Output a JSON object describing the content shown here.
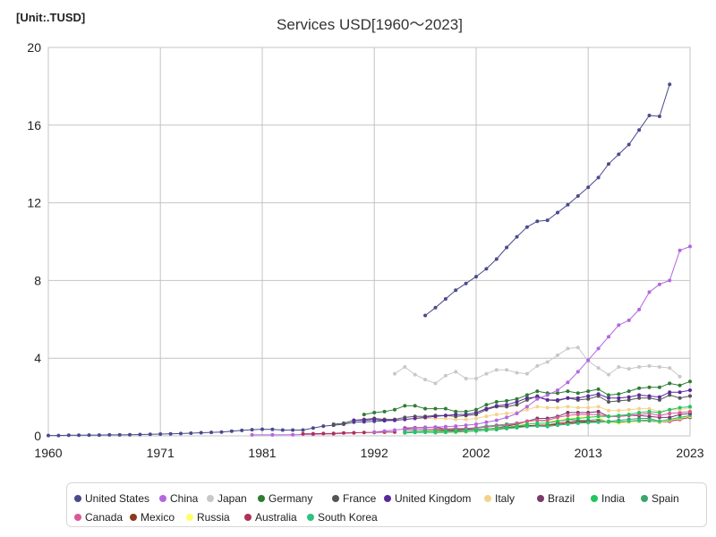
{
  "unit_label": "[Unit:.TUSD]",
  "chart_data": {
    "type": "line",
    "title": "Services USD[1960～2023]",
    "xlabel": "",
    "ylabel": "",
    "xlim": [
      1960,
      2023
    ],
    "ylim": [
      0,
      20
    ],
    "x_ticks": [
      1960,
      1971,
      1981,
      1992,
      2002,
      2013,
      2023
    ],
    "y_ticks": [
      0,
      4,
      8,
      12,
      16,
      20
    ],
    "grid": true,
    "legend_position": "bottom",
    "series": [
      {
        "name": "United States",
        "color": "#4a4a8c",
        "x": [
          1997,
          1998,
          1999,
          2000,
          2001,
          2002,
          2003,
          2004,
          2005,
          2006,
          2007,
          2008,
          2009,
          2010,
          2011,
          2012,
          2013,
          2014,
          2015,
          2016,
          2017,
          2018,
          2019,
          2020,
          2021
        ],
        "y": [
          6.2,
          6.6,
          7.05,
          7.5,
          7.85,
          8.2,
          8.6,
          9.1,
          9.7,
          10.25,
          10.75,
          11.05,
          11.1,
          11.5,
          11.9,
          12.35,
          12.8,
          13.3,
          14.0,
          14.5,
          15.0,
          15.75,
          16.5,
          16.45,
          18.1
        ]
      },
      {
        "name": "China",
        "color": "#b266e0",
        "x": [
          1992,
          1993,
          1994,
          1995,
          1996,
          1997,
          1998,
          1999,
          2000,
          2001,
          2002,
          2003,
          2004,
          2005,
          2006,
          2007,
          2008,
          2009,
          2010,
          2011,
          2012,
          2013,
          2014,
          2015,
          2016,
          2017,
          2018,
          2019,
          2020,
          2021,
          2022,
          2023
        ],
        "y": [
          0.2,
          0.25,
          0.3,
          0.35,
          0.4,
          0.42,
          0.45,
          0.48,
          0.5,
          0.55,
          0.6,
          0.7,
          0.8,
          0.95,
          1.15,
          1.5,
          1.9,
          2.1,
          2.35,
          2.75,
          3.3,
          3.9,
          4.5,
          5.1,
          5.7,
          5.95,
          6.5,
          7.4,
          7.8,
          8.0,
          9.55,
          9.75
        ]
      },
      {
        "name": "Japan",
        "color": "#c8c8c8",
        "x": [
          1994,
          1995,
          1996,
          1997,
          1998,
          1999,
          2000,
          2001,
          2002,
          2003,
          2004,
          2005,
          2006,
          2007,
          2008,
          2009,
          2010,
          2011,
          2012,
          2013,
          2014,
          2015,
          2016,
          2017,
          2018,
          2019,
          2020,
          2021,
          2022
        ],
        "y": [
          3.2,
          3.55,
          3.15,
          2.9,
          2.7,
          3.1,
          3.3,
          2.95,
          2.95,
          3.2,
          3.4,
          3.4,
          3.25,
          3.2,
          3.6,
          3.8,
          4.15,
          4.5,
          4.55,
          3.85,
          3.5,
          3.15,
          3.55,
          3.45,
          3.55,
          3.6,
          3.55,
          3.5,
          3.05
        ]
      },
      {
        "name": "Germany",
        "color": "#2e7d32",
        "x": [
          1991,
          1992,
          1993,
          1994,
          1995,
          1996,
          1997,
          1998,
          1999,
          2000,
          2001,
          2002,
          2003,
          2004,
          2005,
          2006,
          2007,
          2008,
          2009,
          2010,
          2011,
          2012,
          2013,
          2014,
          2015,
          2016,
          2017,
          2018,
          2019,
          2020,
          2021,
          2022,
          2023
        ],
        "y": [
          1.1,
          1.2,
          1.25,
          1.35,
          1.55,
          1.55,
          1.4,
          1.4,
          1.4,
          1.25,
          1.25,
          1.35,
          1.6,
          1.75,
          1.8,
          1.9,
          2.1,
          2.3,
          2.2,
          2.2,
          2.3,
          2.2,
          2.3,
          2.4,
          2.1,
          2.15,
          2.3,
          2.45,
          2.5,
          2.5,
          2.7,
          2.6,
          2.8
        ]
      },
      {
        "name": "France",
        "color": "#555555",
        "x": [
          1988,
          1989,
          1990,
          1991,
          1992,
          1993,
          1994,
          1995,
          1996,
          1997,
          1998,
          1999,
          2000,
          2001,
          2002,
          2003,
          2004,
          2005,
          2006,
          2007,
          2008,
          2009,
          2010,
          2011,
          2012,
          2013,
          2014,
          2015,
          2016,
          2017,
          2018,
          2019,
          2020,
          2021,
          2022,
          2023
        ],
        "y": [
          0.6,
          0.65,
          0.8,
          0.85,
          0.9,
          0.85,
          0.85,
          0.95,
          1.0,
          1.0,
          1.05,
          1.05,
          1.0,
          1.05,
          1.1,
          1.35,
          1.5,
          1.5,
          1.6,
          1.85,
          2.05,
          1.85,
          1.8,
          1.95,
          1.85,
          1.9,
          2.05,
          1.75,
          1.8,
          1.85,
          1.95,
          1.95,
          1.85,
          2.1,
          1.95,
          2.05
        ]
      },
      {
        "name": "United Kingdom",
        "color": "#5a2a9c",
        "x": [
          1990,
          1991,
          1992,
          1993,
          1994,
          1995,
          1996,
          1997,
          1998,
          1999,
          2000,
          2001,
          2002,
          2003,
          2004,
          2005,
          2006,
          2007,
          2008,
          2009,
          2010,
          2011,
          2012,
          2013,
          2014,
          2015,
          2016,
          2017,
          2018,
          2019,
          2020,
          2021,
          2022,
          2023
        ],
        "y": [
          0.8,
          0.8,
          0.85,
          0.8,
          0.8,
          0.85,
          0.9,
          0.95,
          1.0,
          1.05,
          1.1,
          1.1,
          1.2,
          1.4,
          1.55,
          1.6,
          1.75,
          1.95,
          2.0,
          1.85,
          1.85,
          1.95,
          1.95,
          2.05,
          2.15,
          1.95,
          1.95,
          2.0,
          2.1,
          2.05,
          2.0,
          2.25,
          2.25,
          2.35
        ]
      },
      {
        "name": "Italy",
        "color": "#f5d28a",
        "x": [
          1995,
          1996,
          1997,
          1998,
          1999,
          2000,
          2001,
          2002,
          2003,
          2004,
          2005,
          2006,
          2007,
          2008,
          2009,
          2010,
          2011,
          2012,
          2013,
          2014,
          2015,
          2016,
          2017,
          2018,
          2019,
          2020,
          2021,
          2022,
          2023
        ],
        "y": [
          0.85,
          0.9,
          0.9,
          0.9,
          0.9,
          0.85,
          0.85,
          0.9,
          1.0,
          1.1,
          1.15,
          1.2,
          1.35,
          1.5,
          1.45,
          1.45,
          1.5,
          1.45,
          1.45,
          1.5,
          1.3,
          1.3,
          1.35,
          1.4,
          1.4,
          1.25,
          1.35,
          1.35,
          1.45
        ]
      },
      {
        "name": "Brazil",
        "color": "#7a3a6a",
        "x": [
          1995,
          1996,
          1997,
          1998,
          1999,
          2000,
          2001,
          2002,
          2003,
          2004,
          2005,
          2006,
          2007,
          2008,
          2009,
          2010,
          2011,
          2012,
          2013,
          2014,
          2015,
          2016,
          2017,
          2018,
          2019,
          2020,
          2021,
          2022,
          2023
        ],
        "y": [
          0.4,
          0.42,
          0.44,
          0.45,
          0.35,
          0.38,
          0.35,
          0.33,
          0.35,
          0.4,
          0.5,
          0.6,
          0.75,
          0.9,
          0.9,
          1.0,
          1.2,
          1.2,
          1.2,
          1.25,
          1.0,
          1.0,
          1.05,
          1.05,
          1.0,
          0.95,
          0.95,
          1.1,
          1.15
        ]
      },
      {
        "name": "India",
        "color": "#22c55e",
        "x": [
          1995,
          1996,
          1997,
          1998,
          1999,
          2000,
          2001,
          2002,
          2003,
          2004,
          2005,
          2006,
          2007,
          2008,
          2009,
          2010,
          2011,
          2012,
          2013,
          2014,
          2015,
          2016,
          2017,
          2018,
          2019,
          2020,
          2021,
          2022,
          2023
        ],
        "y": [
          0.2,
          0.22,
          0.24,
          0.25,
          0.26,
          0.28,
          0.3,
          0.32,
          0.35,
          0.4,
          0.45,
          0.5,
          0.6,
          0.65,
          0.65,
          0.75,
          0.85,
          0.9,
          0.95,
          1.0,
          1.0,
          1.05,
          1.1,
          1.2,
          1.25,
          1.2,
          1.35,
          1.45,
          1.5
        ]
      },
      {
        "name": "Spain",
        "color": "#3aa66b",
        "x": [
          1995,
          1996,
          1997,
          1998,
          1999,
          2000,
          2001,
          2002,
          2003,
          2004,
          2005,
          2006,
          2007,
          2008,
          2009,
          2010,
          2011,
          2012,
          2013,
          2014,
          2015,
          2016,
          2017,
          2018,
          2019,
          2020,
          2021,
          2022,
          2023
        ],
        "y": [
          0.3,
          0.32,
          0.33,
          0.35,
          0.36,
          0.36,
          0.38,
          0.42,
          0.5,
          0.55,
          0.6,
          0.65,
          0.75,
          0.8,
          0.75,
          0.75,
          0.85,
          0.8,
          0.8,
          0.85,
          0.75,
          0.8,
          0.85,
          0.9,
          0.9,
          0.75,
          0.85,
          0.95,
          1.0
        ]
      },
      {
        "name": "Canada",
        "color": "#d9589a",
        "x": [
          1995,
          1996,
          1997,
          1998,
          1999,
          2000,
          2001,
          2002,
          2003,
          2004,
          2005,
          2006,
          2007,
          2008,
          2009,
          2010,
          2011,
          2012,
          2013,
          2014,
          2015,
          2016,
          2017,
          2018,
          2019,
          2020,
          2021,
          2022,
          2023
        ],
        "y": [
          0.3,
          0.32,
          0.34,
          0.35,
          0.36,
          0.38,
          0.38,
          0.4,
          0.45,
          0.5,
          0.55,
          0.65,
          0.75,
          0.8,
          0.8,
          0.95,
          1.05,
          1.1,
          1.1,
          1.1,
          1.0,
          1.0,
          1.05,
          1.1,
          1.15,
          1.05,
          1.15,
          1.2,
          1.25
        ]
      },
      {
        "name": "Mexico",
        "color": "#8b3a1e",
        "x": [
          1995,
          1996,
          1997,
          1998,
          1999,
          2000,
          2001,
          2002,
          2003,
          2004,
          2005,
          2006,
          2007,
          2008,
          2009,
          2010,
          2011,
          2012,
          2013,
          2014,
          2015,
          2016,
          2017,
          2018,
          2019,
          2020,
          2021,
          2022,
          2023
        ],
        "y": [
          0.2,
          0.22,
          0.25,
          0.27,
          0.3,
          0.32,
          0.32,
          0.33,
          0.35,
          0.38,
          0.42,
          0.48,
          0.52,
          0.55,
          0.55,
          0.58,
          0.65,
          0.7,
          0.72,
          0.75,
          0.72,
          0.68,
          0.72,
          0.75,
          0.78,
          0.7,
          0.8,
          0.9,
          1.0
        ]
      },
      {
        "name": "Russia",
        "color": "#ffff66",
        "x": [
          1995,
          1996,
          1997,
          1998,
          1999,
          2000,
          2001,
          2002,
          2003,
          2004,
          2005,
          2006,
          2007,
          2008,
          2009,
          2010,
          2011,
          2012,
          2013,
          2014,
          2015,
          2016,
          2017,
          2018,
          2019,
          2020,
          2021,
          2022,
          2023
        ],
        "y": [
          0.2,
          0.2,
          0.22,
          0.2,
          0.18,
          0.18,
          0.2,
          0.25,
          0.3,
          0.38,
          0.45,
          0.55,
          0.7,
          0.85,
          0.75,
          0.8,
          0.9,
          0.95,
          1.0,
          0.95,
          0.7,
          0.65,
          0.7,
          0.75,
          0.8,
          0.7,
          0.8,
          0.9,
          1.0
        ]
      },
      {
        "name": "Australia",
        "color": "#b03055",
        "x": [
          1995,
          1996,
          1997,
          1998,
          1999,
          2000,
          2001,
          2002,
          2003,
          2004,
          2005,
          2006,
          2007,
          2008,
          2009,
          2010,
          2011,
          2012,
          2013,
          2014,
          2015,
          2016,
          2017,
          2018,
          2019,
          2020,
          2021,
          2022,
          2023
        ],
        "y": [
          0.2,
          0.22,
          0.23,
          0.22,
          0.24,
          0.24,
          0.23,
          0.25,
          0.3,
          0.35,
          0.38,
          0.42,
          0.5,
          0.55,
          0.55,
          0.65,
          0.72,
          0.75,
          0.75,
          0.75,
          0.7,
          0.7,
          0.75,
          0.8,
          0.8,
          0.7,
          0.75,
          0.85,
          0.95
        ]
      },
      {
        "name": "South Korea",
        "color": "#2ec27e",
        "x": [
          1995,
          1996,
          1997,
          1998,
          1999,
          2000,
          2001,
          2002,
          2003,
          2004,
          2005,
          2006,
          2007,
          2008,
          2009,
          2010,
          2011,
          2012,
          2013,
          2014,
          2015,
          2016,
          2017,
          2018,
          2019,
          2020,
          2021,
          2022,
          2023
        ],
        "y": [
          0.15,
          0.17,
          0.18,
          0.16,
          0.18,
          0.2,
          0.22,
          0.25,
          0.28,
          0.32,
          0.38,
          0.42,
          0.48,
          0.5,
          0.48,
          0.55,
          0.6,
          0.65,
          0.68,
          0.7,
          0.72,
          0.72,
          0.75,
          0.78,
          0.8,
          0.75,
          0.85,
          0.95,
          1.05
        ]
      },
      {
        "name": "",
        "color": "#4a4a8c",
        "x": [
          1960,
          1961,
          1962,
          1963,
          1964,
          1965,
          1966,
          1967,
          1968,
          1969,
          1970,
          1971,
          1972,
          1973,
          1974,
          1975,
          1976,
          1977,
          1978,
          1979,
          1980,
          1981,
          1982,
          1983,
          1984,
          1985,
          1986,
          1987,
          1988,
          1989,
          1990,
          1991,
          1992,
          1993,
          1994
        ],
        "y": [
          0.02,
          0.02,
          0.03,
          0.03,
          0.04,
          0.04,
          0.05,
          0.05,
          0.06,
          0.07,
          0.08,
          0.09,
          0.1,
          0.12,
          0.14,
          0.16,
          0.18,
          0.2,
          0.24,
          0.28,
          0.32,
          0.34,
          0.33,
          0.3,
          0.3,
          0.3,
          0.4,
          0.5,
          0.55,
          0.6,
          0.7,
          0.72,
          0.75,
          0.78,
          0.8
        ]
      },
      {
        "name": "",
        "color": "#b266e0",
        "x": [
          1980,
          1982,
          1984,
          1986,
          1988,
          1990
        ],
        "y": [
          0.05,
          0.05,
          0.06,
          0.08,
          0.1,
          0.15
        ]
      },
      {
        "name": "",
        "color": "#b03055",
        "x": [
          1985,
          1986,
          1987,
          1988,
          1989,
          1990,
          1991,
          1992,
          1993,
          1994
        ],
        "y": [
          0.1,
          0.11,
          0.12,
          0.13,
          0.15,
          0.16,
          0.17,
          0.18,
          0.19,
          0.2
        ]
      }
    ]
  },
  "legend": [
    {
      "label": "United States",
      "color": "#4a4a8c"
    },
    {
      "label": "China",
      "color": "#b266e0"
    },
    {
      "label": "Japan",
      "color": "#c8c8c8"
    },
    {
      "label": "Germany",
      "color": "#2e7d32"
    },
    {
      "label": "France",
      "color": "#555555"
    },
    {
      "label": "United Kingdom",
      "color": "#5a2a9c"
    },
    {
      "label": "Italy",
      "color": "#f5d28a"
    },
    {
      "label": "Brazil",
      "color": "#7a3a6a"
    },
    {
      "label": "India",
      "color": "#22c55e"
    },
    {
      "label": "Spain",
      "color": "#3aa66b"
    },
    {
      "label": "Canada",
      "color": "#d9589a"
    },
    {
      "label": "Mexico",
      "color": "#8b3a1e"
    },
    {
      "label": "Russia",
      "color": "#ffff66"
    },
    {
      "label": "Australia",
      "color": "#b03055"
    },
    {
      "label": "South Korea",
      "color": "#2ec27e"
    }
  ]
}
